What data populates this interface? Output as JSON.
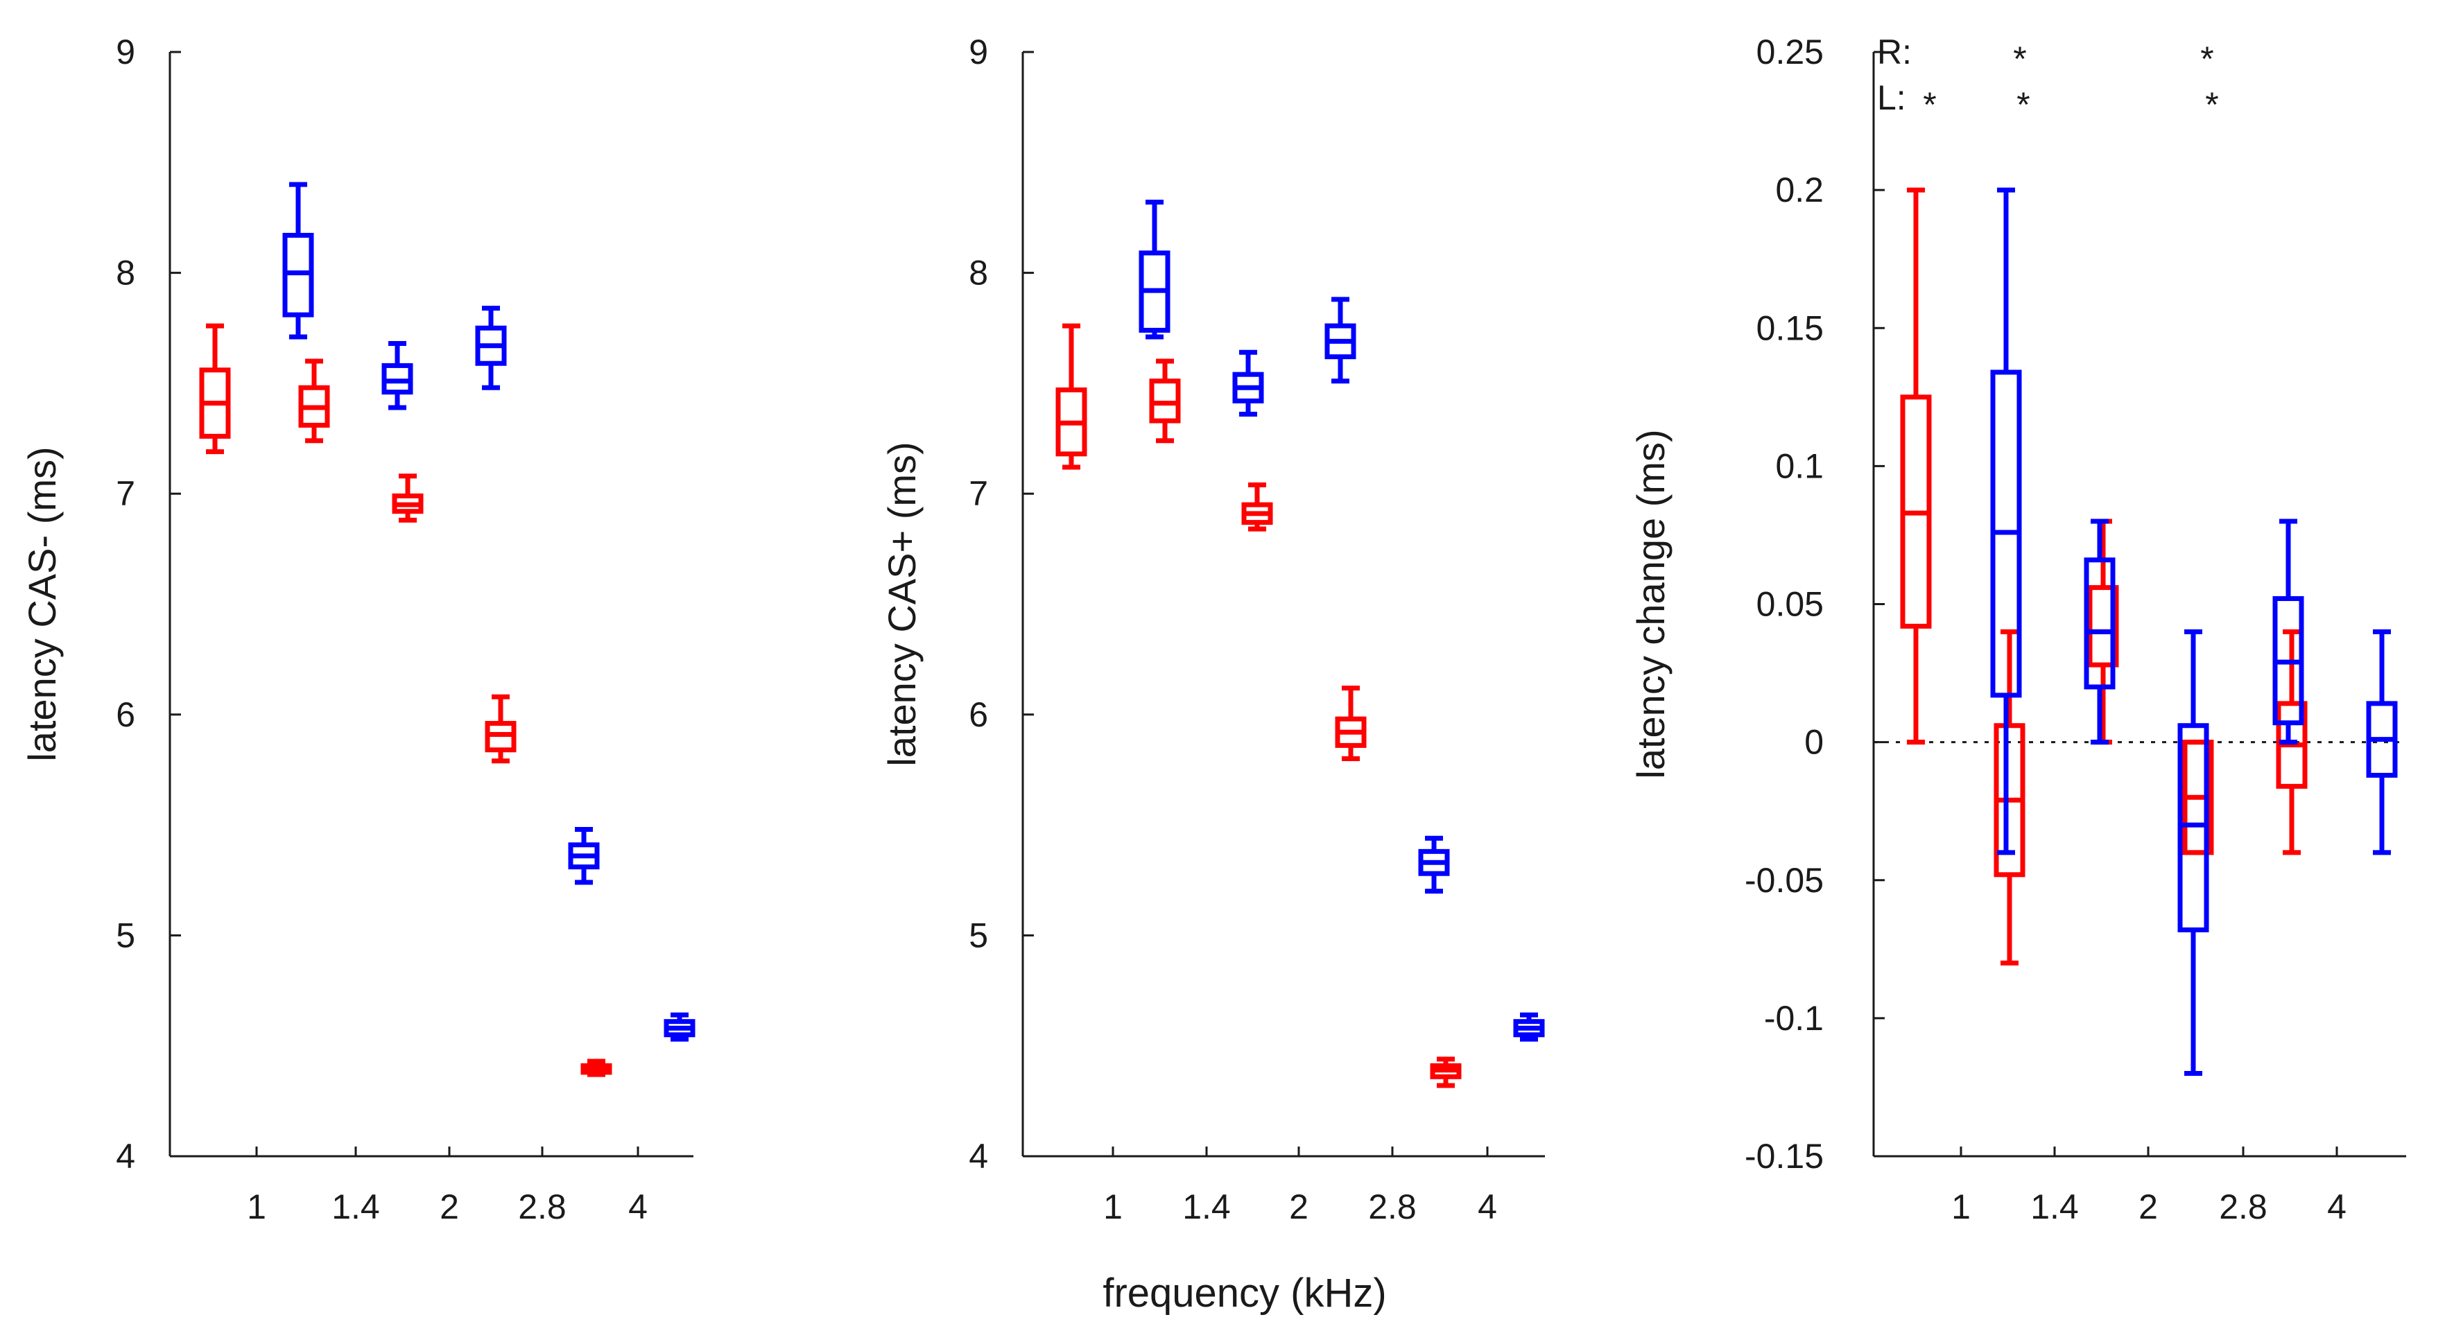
{
  "figure": {
    "xlabel": "frequency (kHz)"
  },
  "series_colors": {
    "R": "#ff0000",
    "L": "#0000ff"
  },
  "chart_data": [
    {
      "type": "box",
      "ylabel": "latency CAS- (ms)",
      "ylim": [
        4,
        9
      ],
      "yticks": [
        "4",
        "5",
        "6",
        "7",
        "8",
        "9"
      ],
      "categories": [
        "1",
        "1.4",
        "2",
        "2.8",
        "4"
      ],
      "grid": false,
      "series": [
        {
          "color": "#ff0000",
          "boxes": [
            {
              "min": 7.19,
              "q1": 7.26,
              "median": 7.41,
              "q3": 7.56,
              "max": 7.76
            },
            {
              "min": 7.24,
              "q1": 7.31,
              "median": 7.39,
              "q3": 7.48,
              "max": 7.6
            },
            {
              "min": 6.88,
              "q1": 6.92,
              "median": 6.95,
              "q3": 6.99,
              "max": 7.08
            },
            {
              "min": 5.79,
              "q1": 5.84,
              "median": 5.91,
              "q3": 5.96,
              "max": 6.08
            },
            {
              "min": 4.37,
              "q1": 4.38,
              "median": 4.4,
              "q3": 4.41,
              "max": 4.43
            }
          ]
        },
        {
          "color": "#0000ff",
          "boxes": [
            {
              "min": 7.71,
              "q1": 7.81,
              "median": 8.0,
              "q3": 8.17,
              "max": 8.4
            },
            {
              "min": 7.39,
              "q1": 7.46,
              "median": 7.51,
              "q3": 7.58,
              "max": 7.68
            },
            {
              "min": 7.48,
              "q1": 7.59,
              "median": 7.67,
              "q3": 7.75,
              "max": 7.84
            },
            {
              "min": 5.24,
              "q1": 5.31,
              "median": 5.36,
              "q3": 5.41,
              "max": 5.48
            },
            {
              "min": 4.53,
              "q1": 4.55,
              "median": 4.58,
              "q3": 4.61,
              "max": 4.64
            }
          ]
        }
      ]
    },
    {
      "type": "box",
      "ylabel": "latency CAS+ (ms)",
      "ylim": [
        4,
        9
      ],
      "yticks": [
        "4",
        "5",
        "6",
        "7",
        "8",
        "9"
      ],
      "categories": [
        "1",
        "1.4",
        "2",
        "2.8",
        "4"
      ],
      "grid": false,
      "series": [
        {
          "color": "#ff0000",
          "boxes": [
            {
              "min": 7.12,
              "q1": 7.18,
              "median": 7.32,
              "q3": 7.47,
              "max": 7.76
            },
            {
              "min": 7.24,
              "q1": 7.33,
              "median": 7.41,
              "q3": 7.51,
              "max": 7.6
            },
            {
              "min": 6.84,
              "q1": 6.87,
              "median": 6.91,
              "q3": 6.95,
              "max": 7.04
            },
            {
              "min": 5.8,
              "q1": 5.86,
              "median": 5.92,
              "q3": 5.98,
              "max": 6.12
            },
            {
              "min": 4.32,
              "q1": 4.36,
              "median": 4.39,
              "q3": 4.41,
              "max": 4.44
            }
          ]
        },
        {
          "color": "#0000ff",
          "boxes": [
            {
              "min": 7.71,
              "q1": 7.74,
              "median": 7.92,
              "q3": 8.09,
              "max": 8.32
            },
            {
              "min": 7.36,
              "q1": 7.42,
              "median": 7.48,
              "q3": 7.54,
              "max": 7.64
            },
            {
              "min": 7.51,
              "q1": 7.62,
              "median": 7.69,
              "q3": 7.76,
              "max": 7.88
            },
            {
              "min": 5.2,
              "q1": 5.28,
              "median": 5.33,
              "q3": 5.38,
              "max": 5.44
            },
            {
              "min": 4.53,
              "q1": 4.55,
              "median": 4.58,
              "q3": 4.61,
              "max": 4.64
            }
          ]
        }
      ]
    },
    {
      "type": "box",
      "ylabel": "latency change (ms)",
      "ylim": [
        -0.15,
        0.25
      ],
      "yticks": [
        "-0.15",
        "-0.1",
        "-0.05",
        "0",
        "0.05",
        "0.1",
        "0.15",
        "0.2",
        "0.25"
      ],
      "categories": [
        "1",
        "1.4",
        "2",
        "2.8",
        "4"
      ],
      "grid": false,
      "reference_line": {
        "y": 0,
        "style": "dotted"
      },
      "significance": [
        {
          "label": "R:",
          "marks": [
            {
              "category": "1",
              "series": 1,
              "text": "*"
            },
            {
              "category": "2",
              "series": 1,
              "text": "*"
            }
          ]
        },
        {
          "label": "L:",
          "marks": [
            {
              "category": "1",
              "series": 0,
              "text": "*"
            },
            {
              "category": "1.4",
              "series": 0,
              "text": "*"
            },
            {
              "category": "2.8",
              "series": 0,
              "text": "*"
            }
          ]
        }
      ],
      "series": [
        {
          "color": "#ff0000",
          "boxes": [
            {
              "min": 0.0,
              "q1": 0.042,
              "median": 0.083,
              "q3": 0.125,
              "max": 0.2
            },
            {
              "min": -0.08,
              "q1": -0.048,
              "median": -0.021,
              "q3": 0.006,
              "max": 0.04
            },
            {
              "min": 0.0,
              "q1": 0.028,
              "median": 0.04,
              "q3": 0.056,
              "max": 0.08
            },
            {
              "min": -0.04,
              "q1": -0.04,
              "median": -0.02,
              "q3": 0.0,
              "max": 0.0
            },
            {
              "min": -0.04,
              "q1": -0.016,
              "median": -0.001,
              "q3": 0.014,
              "max": 0.04
            }
          ]
        },
        {
          "color": "#0000ff",
          "boxes": [
            {
              "min": -0.04,
              "q1": 0.017,
              "median": 0.076,
              "q3": 0.134,
              "max": 0.2
            },
            {
              "min": 0.0,
              "q1": 0.02,
              "median": 0.04,
              "q3": 0.066,
              "max": 0.08
            },
            {
              "min": -0.12,
              "q1": -0.068,
              "median": -0.03,
              "q3": 0.006,
              "max": 0.04
            },
            {
              "min": 0.0,
              "q1": 0.007,
              "median": 0.029,
              "q3": 0.052,
              "max": 0.08
            },
            {
              "min": -0.04,
              "q1": -0.012,
              "median": 0.001,
              "q3": 0.014,
              "max": 0.04
            }
          ]
        }
      ]
    }
  ]
}
